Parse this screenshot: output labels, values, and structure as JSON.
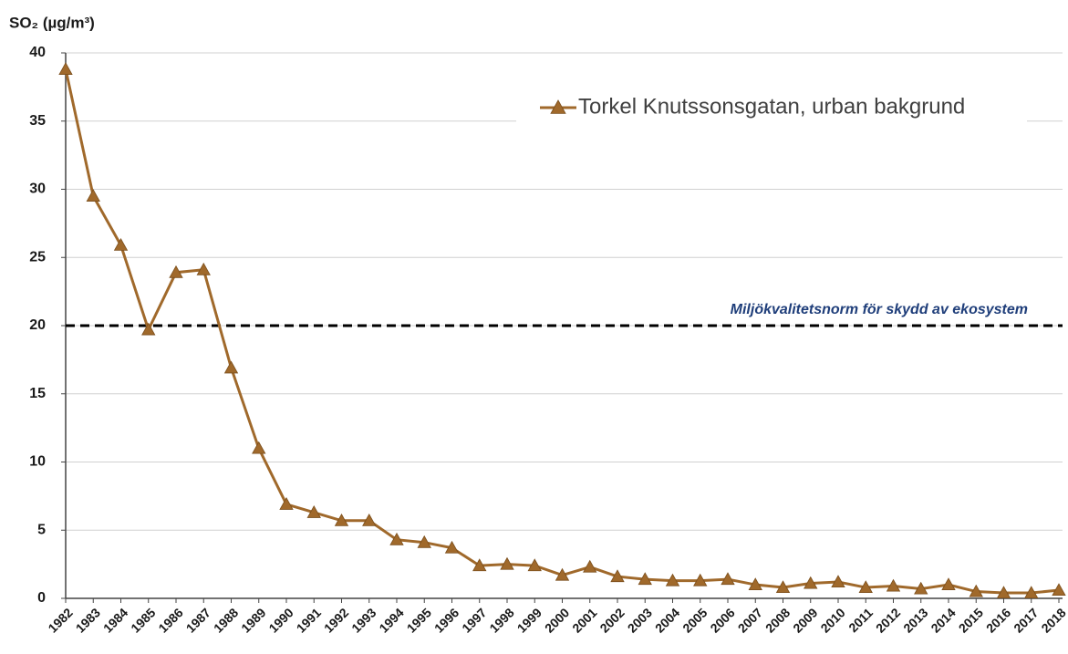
{
  "chart_data": {
    "type": "line",
    "y_label": "SO₂ (µg/m³)",
    "categories": [
      "1982",
      "1983",
      "1984",
      "1985",
      "1986",
      "1987",
      "1988",
      "1989",
      "1990",
      "1991",
      "1992",
      "1993",
      "1994",
      "1995",
      "1996",
      "1997",
      "1998",
      "1999",
      "2000",
      "2001",
      "2002",
      "2003",
      "2004",
      "2005",
      "2006",
      "2007",
      "2008",
      "2009",
      "2010",
      "2011",
      "2012",
      "2013",
      "2014",
      "2015",
      "2016",
      "2017",
      "2018"
    ],
    "series": [
      {
        "name": "Torkel Knutssonsgatan, urban bakgrund",
        "color": "#a0692b",
        "values": [
          38.8,
          29.5,
          25.9,
          19.7,
          23.9,
          24.1,
          16.9,
          11.0,
          6.9,
          6.3,
          5.7,
          5.7,
          4.3,
          4.1,
          3.7,
          2.4,
          2.5,
          2.4,
          1.7,
          2.3,
          1.6,
          1.4,
          1.3,
          1.3,
          1.4,
          1.0,
          0.8,
          1.1,
          1.2,
          0.8,
          0.9,
          0.7,
          1.0,
          0.5,
          0.4,
          0.4,
          0.6
        ]
      }
    ],
    "reference_line": {
      "value": 20,
      "label": "Miljökvalitetsnorm för skydd av ekosystem",
      "color": "#000000",
      "label_color": "#1f3e7a"
    },
    "ylim": [
      0,
      40
    ],
    "yticks": [
      0,
      5,
      10,
      15,
      20,
      25,
      30,
      35,
      40
    ],
    "grid": true
  }
}
